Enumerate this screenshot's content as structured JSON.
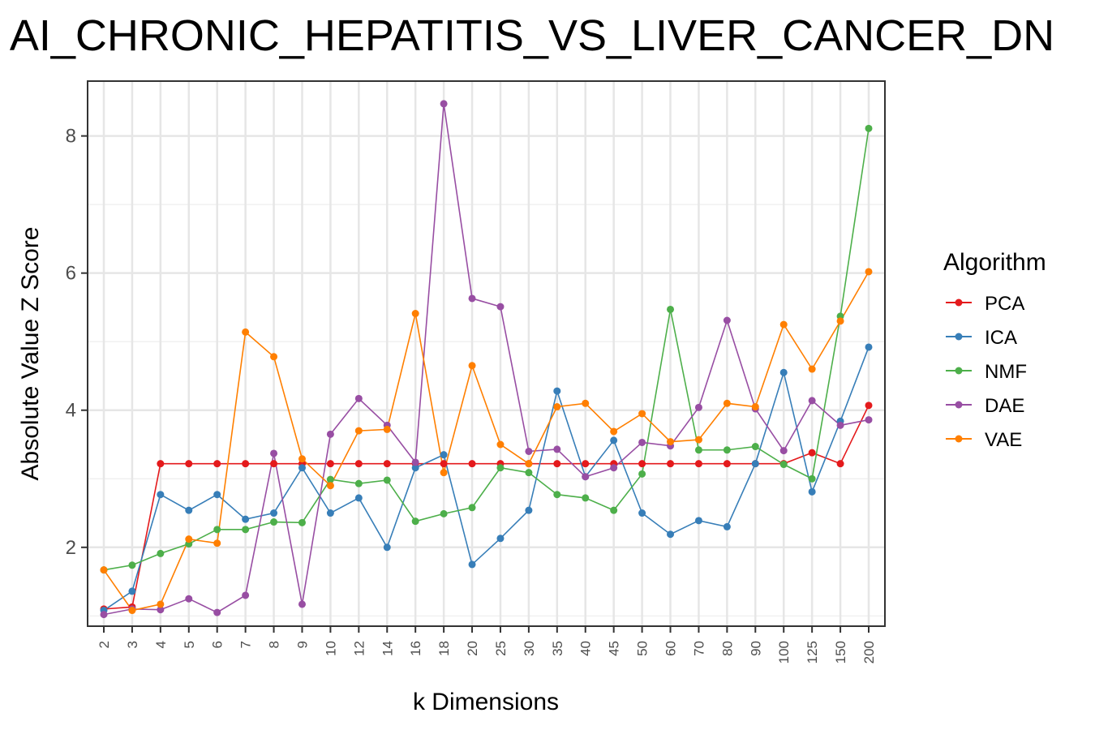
{
  "chart_data": {
    "type": "line",
    "title": "AI_CHRONIC_HEPATITIS_VS_LIVER_CANCER_DN",
    "xlabel": "k Dimensions",
    "ylabel": "Absolute Value Z Score",
    "ylim": [
      0.85,
      8.8
    ],
    "yticks": [
      2,
      4,
      6,
      8
    ],
    "grid": true,
    "legend_title": "Algorithm",
    "legend_position": "right",
    "categories": [
      "2",
      "3",
      "4",
      "5",
      "6",
      "7",
      "8",
      "9",
      "10",
      "12",
      "14",
      "16",
      "18",
      "20",
      "25",
      "30",
      "35",
      "40",
      "45",
      "50",
      "60",
      "70",
      "80",
      "90",
      "100",
      "125",
      "150",
      "200"
    ],
    "series": [
      {
        "name": "PCA",
        "color": "#E41A1C",
        "values": [
          1.1,
          1.13,
          3.22,
          3.22,
          3.22,
          3.22,
          3.22,
          3.22,
          3.22,
          3.22,
          3.22,
          3.22,
          3.22,
          3.22,
          3.22,
          3.22,
          3.22,
          3.22,
          3.22,
          3.22,
          3.22,
          3.22,
          3.22,
          3.22,
          3.22,
          3.38,
          3.22,
          4.07
        ]
      },
      {
        "name": "ICA",
        "color": "#377EB8",
        "values": [
          1.08,
          1.36,
          2.77,
          2.54,
          2.77,
          2.41,
          2.5,
          3.16,
          2.5,
          2.72,
          2.0,
          3.16,
          3.35,
          1.75,
          2.13,
          2.54,
          4.28,
          3.03,
          3.56,
          2.5,
          2.19,
          2.39,
          2.3,
          3.22,
          4.55,
          2.81,
          3.84,
          4.92
        ]
      },
      {
        "name": "NMF",
        "color": "#4DAF4A",
        "values": [
          1.67,
          1.74,
          1.91,
          2.05,
          2.26,
          2.26,
          2.37,
          2.36,
          2.99,
          2.93,
          2.98,
          2.38,
          2.49,
          2.58,
          3.16,
          3.09,
          2.77,
          2.72,
          2.54,
          3.07,
          5.47,
          3.42,
          3.42,
          3.47,
          3.21,
          3.0,
          5.37,
          8.11
        ]
      },
      {
        "name": "DAE",
        "color": "#984EA3",
        "values": [
          1.02,
          1.1,
          1.09,
          1.25,
          1.05,
          1.3,
          3.37,
          1.17,
          3.65,
          4.17,
          3.78,
          3.24,
          8.47,
          5.63,
          5.51,
          3.4,
          3.43,
          3.03,
          3.16,
          3.53,
          3.48,
          4.04,
          5.31,
          4.02,
          3.41,
          4.14,
          3.78,
          3.86
        ]
      },
      {
        "name": "VAE",
        "color": "#FF7F00",
        "values": [
          1.67,
          1.08,
          1.17,
          2.12,
          2.06,
          5.14,
          4.78,
          3.29,
          2.9,
          3.7,
          3.72,
          5.41,
          3.09,
          4.65,
          3.5,
          3.22,
          4.05,
          4.1,
          3.69,
          3.95,
          3.54,
          3.57,
          4.1,
          4.05,
          5.25,
          4.6,
          5.3,
          6.02
        ]
      }
    ]
  }
}
